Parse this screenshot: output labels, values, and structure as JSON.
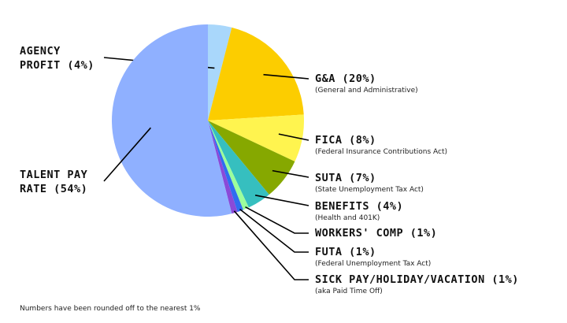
{
  "chart_data": {
    "type": "pie",
    "title": "",
    "slices": [
      {
        "label": "AGENCY PROFIT (4%)",
        "sub": "",
        "value": 4,
        "color": "#a9d7fb"
      },
      {
        "label": "G&A (20%)",
        "sub": "(General and Administrative)",
        "value": 20,
        "color": "#fccd00"
      },
      {
        "label": "FICA (8%)",
        "sub": "(Federal Insurance Contributions Act)",
        "value": 8,
        "color": "#fff44f"
      },
      {
        "label": "SUTA (7%)",
        "sub": "(State Unemployment Tax Act)",
        "value": 7,
        "color": "#86a800"
      },
      {
        "label": "BENEFITS (4%)",
        "sub": "(Health and 401K)",
        "value": 4,
        "color": "#36bfbf"
      },
      {
        "label": "WORKERS' COMP (1%)",
        "sub": "",
        "value": 1,
        "color": "#9cff9c"
      },
      {
        "label": "FUTA (1%)",
        "sub": "(Federal Unemployment Tax Act)",
        "value": 1,
        "color": "#2f6df0"
      },
      {
        "label": "SICK PAY/HOLIDAY/VACATION (1%)",
        "sub": "(aka Paid Time Off)",
        "value": 1,
        "color": "#8a4ad8"
      },
      {
        "label": "TALENT PAY RATE (54%)",
        "sub": "",
        "value": 54,
        "color": "#8fb0ff"
      }
    ],
    "legend": "none",
    "footnote": "Numbers have been rounded off to the nearest 1%"
  }
}
